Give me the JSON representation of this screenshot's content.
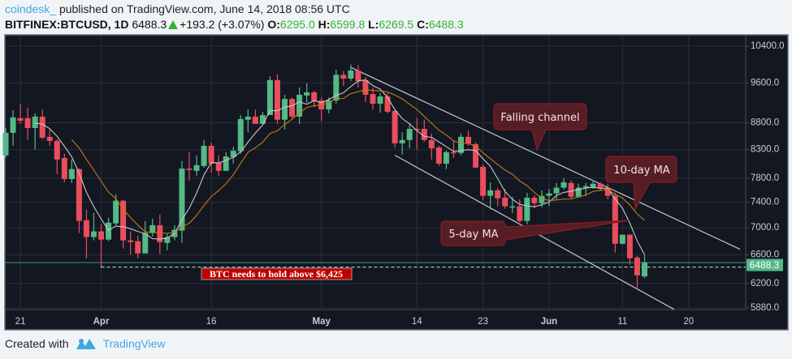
{
  "header": {
    "author": "coindesk_",
    "published": "published on TradingView.com, June 14, 2018 08:56 UTC",
    "symbol": "BITFINEX:BTCUSD, 1D",
    "last": "6488.3",
    "change": "+193.2 (+3.07%)",
    "o_label": "O:",
    "o": "6295.0",
    "h_label": "H:",
    "h": "6599.8",
    "l_label": "L:",
    "l": "6269.5",
    "c_label": "C:",
    "c": "6488.3",
    "change_icon": "triangle-up-icon"
  },
  "footer": {
    "created_with": "Created with",
    "brand": "TradingView",
    "logo_icon": "tradingview-logo-icon"
  },
  "colors": {
    "background": "#131722",
    "grid": "#2a2e39",
    "up": "#53b987",
    "down": "#eb4d5c",
    "ma5": "#c8c8c8",
    "ma10": "#c57a14",
    "channel": "#c8c8c8",
    "callout_fill": "#561d25",
    "callout_border": "#8e1b23",
    "label_red": "#c00000",
    "price_tag": "#53b987"
  },
  "chart_data": {
    "type": "candlestick",
    "scale": "log",
    "grid": true,
    "start_date": "2018-03-19",
    "ylim": [
      5880,
      10400
    ],
    "y_ticks": [
      "10400.0",
      "9600.0",
      "8800.0",
      "8300.0",
      "7800.0",
      "7400.0",
      "7000.0",
      "6600.0",
      "6200.0",
      "5880.0"
    ],
    "y_tick_values": [
      10400,
      9600,
      8800,
      8300,
      7800,
      7400,
      7000,
      6600,
      6200,
      5880
    ],
    "x_ticks": [
      {
        "label": "21",
        "date": "2018-03-21",
        "major": false
      },
      {
        "label": "Apr",
        "date": "2018-04-01",
        "major": true
      },
      {
        "label": "16",
        "date": "2018-04-16",
        "major": false
      },
      {
        "label": "May",
        "date": "2018-05-01",
        "major": true
      },
      {
        "label": "14",
        "date": "2018-05-14",
        "major": false
      },
      {
        "label": "23",
        "date": "2018-05-23",
        "major": false
      },
      {
        "label": "Jun",
        "date": "2018-06-01",
        "major": true
      },
      {
        "label": "11",
        "date": "2018-06-11",
        "major": false
      },
      {
        "label": "20",
        "date": "2018-06-20",
        "major": false
      }
    ],
    "ohlc_fields": [
      "open",
      "high",
      "low",
      "close"
    ],
    "candles": [
      [
        8195,
        8700,
        8150,
        8610
      ],
      [
        8610,
        9045,
        8370,
        8905
      ],
      [
        8890,
        9175,
        8780,
        8840
      ],
      [
        8890,
        9095,
        8475,
        8700
      ],
      [
        8700,
        8985,
        8300,
        8920
      ],
      [
        8920,
        9060,
        8490,
        8520
      ],
      [
        8535,
        8670,
        8370,
        8460
      ],
      [
        8460,
        8490,
        7870,
        8124
      ],
      [
        8150,
        8225,
        7730,
        7785
      ],
      [
        7785,
        8124,
        7718,
        7955
      ],
      [
        7955,
        7970,
        6920,
        7105
      ],
      [
        7117,
        7283,
        6550,
        6860
      ],
      [
        6860,
        7230,
        6810,
        6945
      ],
      [
        6945,
        7054,
        6445,
        6822
      ],
      [
        6822,
        7155,
        6800,
        7080
      ],
      [
        7067,
        7530,
        7040,
        7425
      ],
      [
        7425,
        7438,
        6690,
        6810
      ],
      [
        6810,
        6945,
        6600,
        6785
      ],
      [
        6798,
        6880,
        6550,
        6620
      ],
      [
        6620,
        7105,
        6620,
        6920
      ],
      [
        6920,
        7140,
        6870,
        7040
      ],
      [
        7040,
        7205,
        6610,
        6785
      ],
      [
        6773,
        6920,
        6665,
        6860
      ],
      [
        6860,
        7040,
        6810,
        6970
      ],
      [
        6957,
        8095,
        6773,
        7965
      ],
      [
        7965,
        8255,
        7760,
        7940
      ],
      [
        7925,
        8200,
        7840,
        8025
      ],
      [
        8010,
        8475,
        7980,
        8370
      ],
      [
        8370,
        8430,
        7895,
        8050
      ],
      [
        8065,
        8200,
        7840,
        7925
      ],
      [
        7925,
        8255,
        7925,
        8180
      ],
      [
        8165,
        8355,
        8050,
        8280
      ],
      [
        8270,
        8950,
        8225,
        8873
      ],
      [
        8860,
        9060,
        8620,
        8920
      ],
      [
        8920,
        9060,
        8780,
        8780
      ],
      [
        8780,
        9015,
        8780,
        8950
      ],
      [
        8950,
        9740,
        8950,
        9660
      ],
      [
        9660,
        9775,
        8780,
        8860
      ],
      [
        8860,
        9355,
        8670,
        9270
      ],
      [
        9270,
        9300,
        8873,
        8920
      ],
      [
        8920,
        9505,
        8780,
        9355
      ],
      [
        9340,
        9590,
        9190,
        9405
      ],
      [
        9405,
        9440,
        9110,
        9225
      ],
      [
        9240,
        9300,
        8830,
        9060
      ],
      [
        9060,
        9300,
        8985,
        9240
      ],
      [
        9240,
        9880,
        9175,
        9770
      ],
      [
        9770,
        9850,
        9540,
        9690
      ],
      [
        9690,
        9990,
        9640,
        9864
      ],
      [
        9864,
        9980,
        9505,
        9640
      ],
      [
        9660,
        9725,
        9210,
        9355
      ],
      [
        9370,
        9505,
        9060,
        9175
      ],
      [
        9175,
        9390,
        9000,
        9320
      ],
      [
        9320,
        9390,
        8985,
        9015
      ],
      [
        9030,
        9060,
        8340,
        8415
      ],
      [
        8415,
        8620,
        8210,
        8475
      ],
      [
        8475,
        8795,
        8325,
        8685
      ],
      [
        8685,
        8890,
        8300,
        8670
      ],
      [
        8685,
        8860,
        8445,
        8475
      ],
      [
        8475,
        8595,
        8124,
        8325
      ],
      [
        8340,
        8370,
        8010,
        8050
      ],
      [
        8050,
        8280,
        7955,
        8255
      ],
      [
        8255,
        8460,
        8150,
        8240
      ],
      [
        8240,
        8595,
        8195,
        8535
      ],
      [
        8535,
        8655,
        8370,
        8415
      ],
      [
        8400,
        8430,
        7970,
        7982
      ],
      [
        7995,
        8040,
        7438,
        7505
      ],
      [
        7505,
        7730,
        7283,
        7595
      ],
      [
        7595,
        7635,
        7335,
        7465
      ],
      [
        7475,
        7620,
        7295,
        7335
      ],
      [
        7320,
        7490,
        7230,
        7335
      ],
      [
        7335,
        7450,
        7080,
        7105
      ],
      [
        7105,
        7555,
        7054,
        7475
      ],
      [
        7475,
        7515,
        7308,
        7385
      ],
      [
        7385,
        7595,
        7320,
        7505
      ],
      [
        7505,
        7620,
        7335,
        7545
      ],
      [
        7545,
        7718,
        7450,
        7640
      ],
      [
        7640,
        7800,
        7610,
        7730
      ],
      [
        7718,
        7760,
        7450,
        7490
      ],
      [
        7490,
        7705,
        7475,
        7640
      ],
      [
        7640,
        7718,
        7505,
        7665
      ],
      [
        7650,
        7760,
        7620,
        7705
      ],
      [
        7705,
        7730,
        7595,
        7640
      ],
      [
        7640,
        7705,
        7450,
        7505
      ],
      [
        7505,
        7555,
        6630,
        6760
      ],
      [
        6760,
        6895,
        6750,
        6895
      ],
      [
        6895,
        6905,
        6460,
        6550
      ],
      [
        6560,
        6585,
        6140,
        6310
      ],
      [
        6295,
        6599.8,
        6269.5,
        6488.3
      ]
    ],
    "moving_averages": [
      {
        "name": "5-day MA",
        "period": 5
      },
      {
        "name": "10-day MA",
        "period": 10
      }
    ],
    "last_price_label": "6488.3",
    "support": {
      "price": 6425,
      "from_date": "2018-04-01",
      "label": "BTC needs to hold above $6,425"
    },
    "trendlines": [
      {
        "from": {
          "date": "2018-05-05",
          "price": 9930
        },
        "to": {
          "date": "2018-06-27",
          "price": 6680
        }
      },
      {
        "from": {
          "date": "2018-05-11",
          "price": 8200
        },
        "to": {
          "date": "2018-06-18",
          "price": 5860
        }
      }
    ],
    "annotations": [
      {
        "text": "Falling channel"
      },
      {
        "text": "10-day MA"
      },
      {
        "text": "5-day MA"
      }
    ]
  }
}
